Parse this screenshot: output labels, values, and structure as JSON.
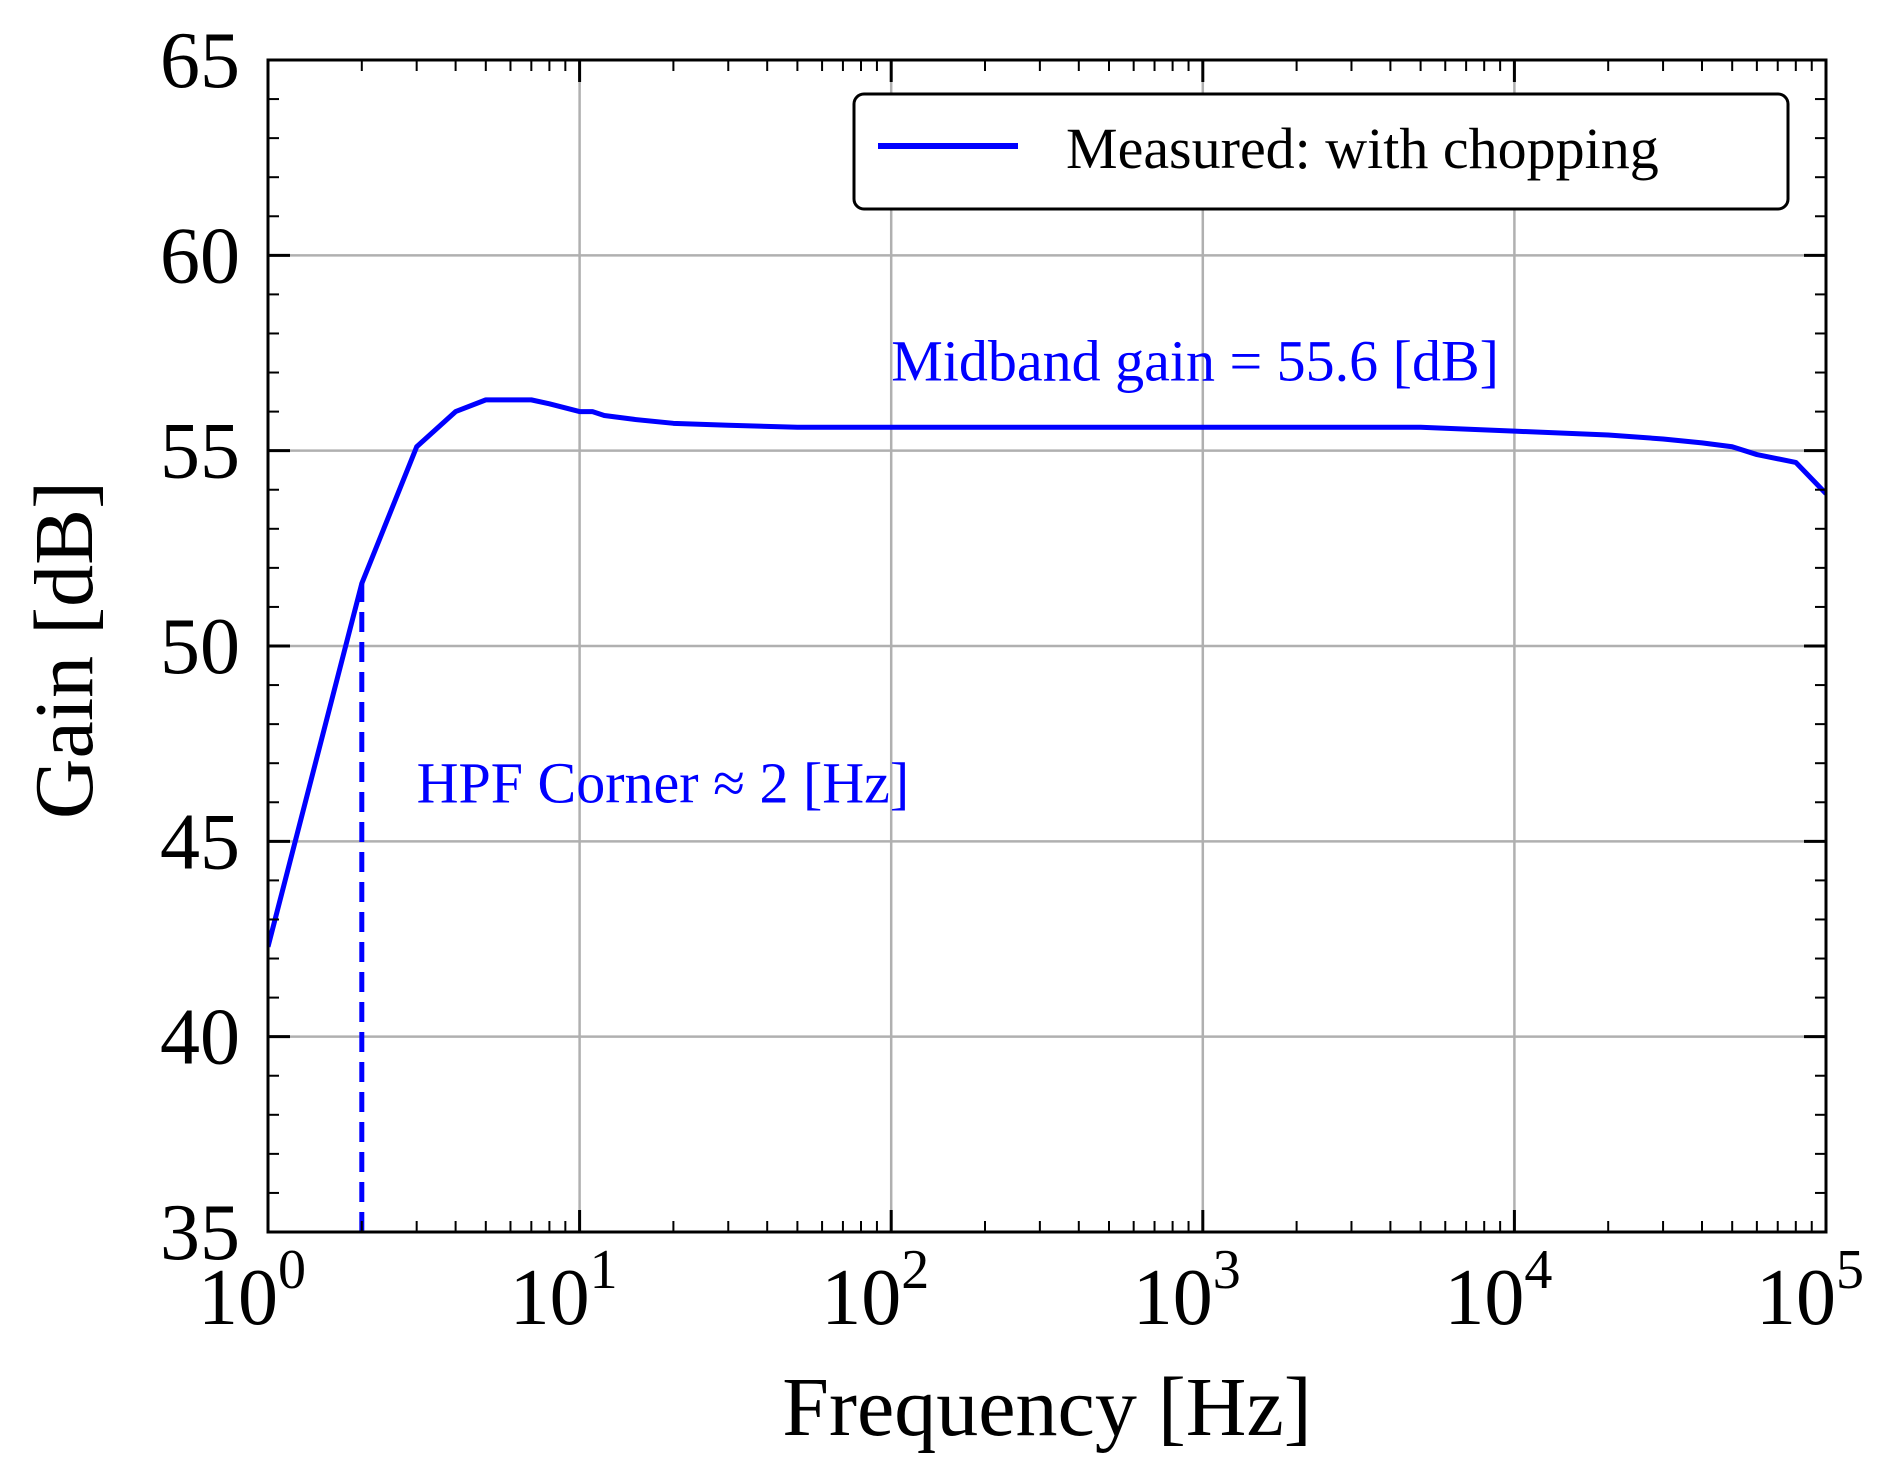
{
  "chart_data": {
    "type": "line",
    "title": "",
    "xlabel": "Frequency [Hz]",
    "ylabel": "Gain [dB]",
    "xscale": "log",
    "xlim": [
      1,
      100000
    ],
    "ylim": [
      35,
      65
    ],
    "grid": true,
    "legend_position": "top-right",
    "x_ticks": [
      {
        "value": 1,
        "base": "10",
        "exp": "0"
      },
      {
        "value": 10,
        "base": "10",
        "exp": "1"
      },
      {
        "value": 100,
        "base": "10",
        "exp": "2"
      },
      {
        "value": 1000,
        "base": "10",
        "exp": "3"
      },
      {
        "value": 10000,
        "base": "10",
        "exp": "4"
      },
      {
        "value": 100000,
        "base": "10",
        "exp": "5"
      }
    ],
    "y_ticks": [
      {
        "value": 35,
        "label": "35"
      },
      {
        "value": 40,
        "label": "40"
      },
      {
        "value": 45,
        "label": "45"
      },
      {
        "value": 50,
        "label": "50"
      },
      {
        "value": 55,
        "label": "55"
      },
      {
        "value": 60,
        "label": "60"
      },
      {
        "value": 65,
        "label": "65"
      }
    ],
    "series": [
      {
        "name": "Measured: with chopping",
        "color": "#0000ff",
        "style": "solid",
        "x": [
          1,
          2,
          3,
          4,
          5,
          7,
          8,
          10,
          11,
          12,
          15,
          20,
          30,
          50,
          100,
          200,
          500,
          1000,
          2000,
          5000,
          10000,
          20000,
          30000,
          40000,
          50000,
          60000,
          80000,
          100000
        ],
        "y": [
          42.3,
          51.6,
          55.1,
          56.0,
          56.3,
          56.3,
          56.2,
          56.0,
          56.0,
          55.9,
          55.8,
          55.7,
          55.65,
          55.6,
          55.6,
          55.6,
          55.6,
          55.6,
          55.6,
          55.6,
          55.5,
          55.4,
          55.3,
          55.2,
          55.1,
          54.9,
          54.7,
          53.9
        ]
      }
    ],
    "reference_lines": [
      {
        "type": "vertical",
        "x": 2,
        "y_from": 35,
        "y_to": 51.6,
        "color": "#0000ff",
        "style": "dashed"
      }
    ],
    "annotations": [
      {
        "text": "Midband gain = 55.6 [dB]",
        "x": 100,
        "y": 56.8,
        "color": "#0000ff"
      },
      {
        "text": "HPF Corner ≈ 2 [Hz]",
        "x": 3,
        "y": 46.0,
        "color": "#0000ff"
      }
    ]
  }
}
